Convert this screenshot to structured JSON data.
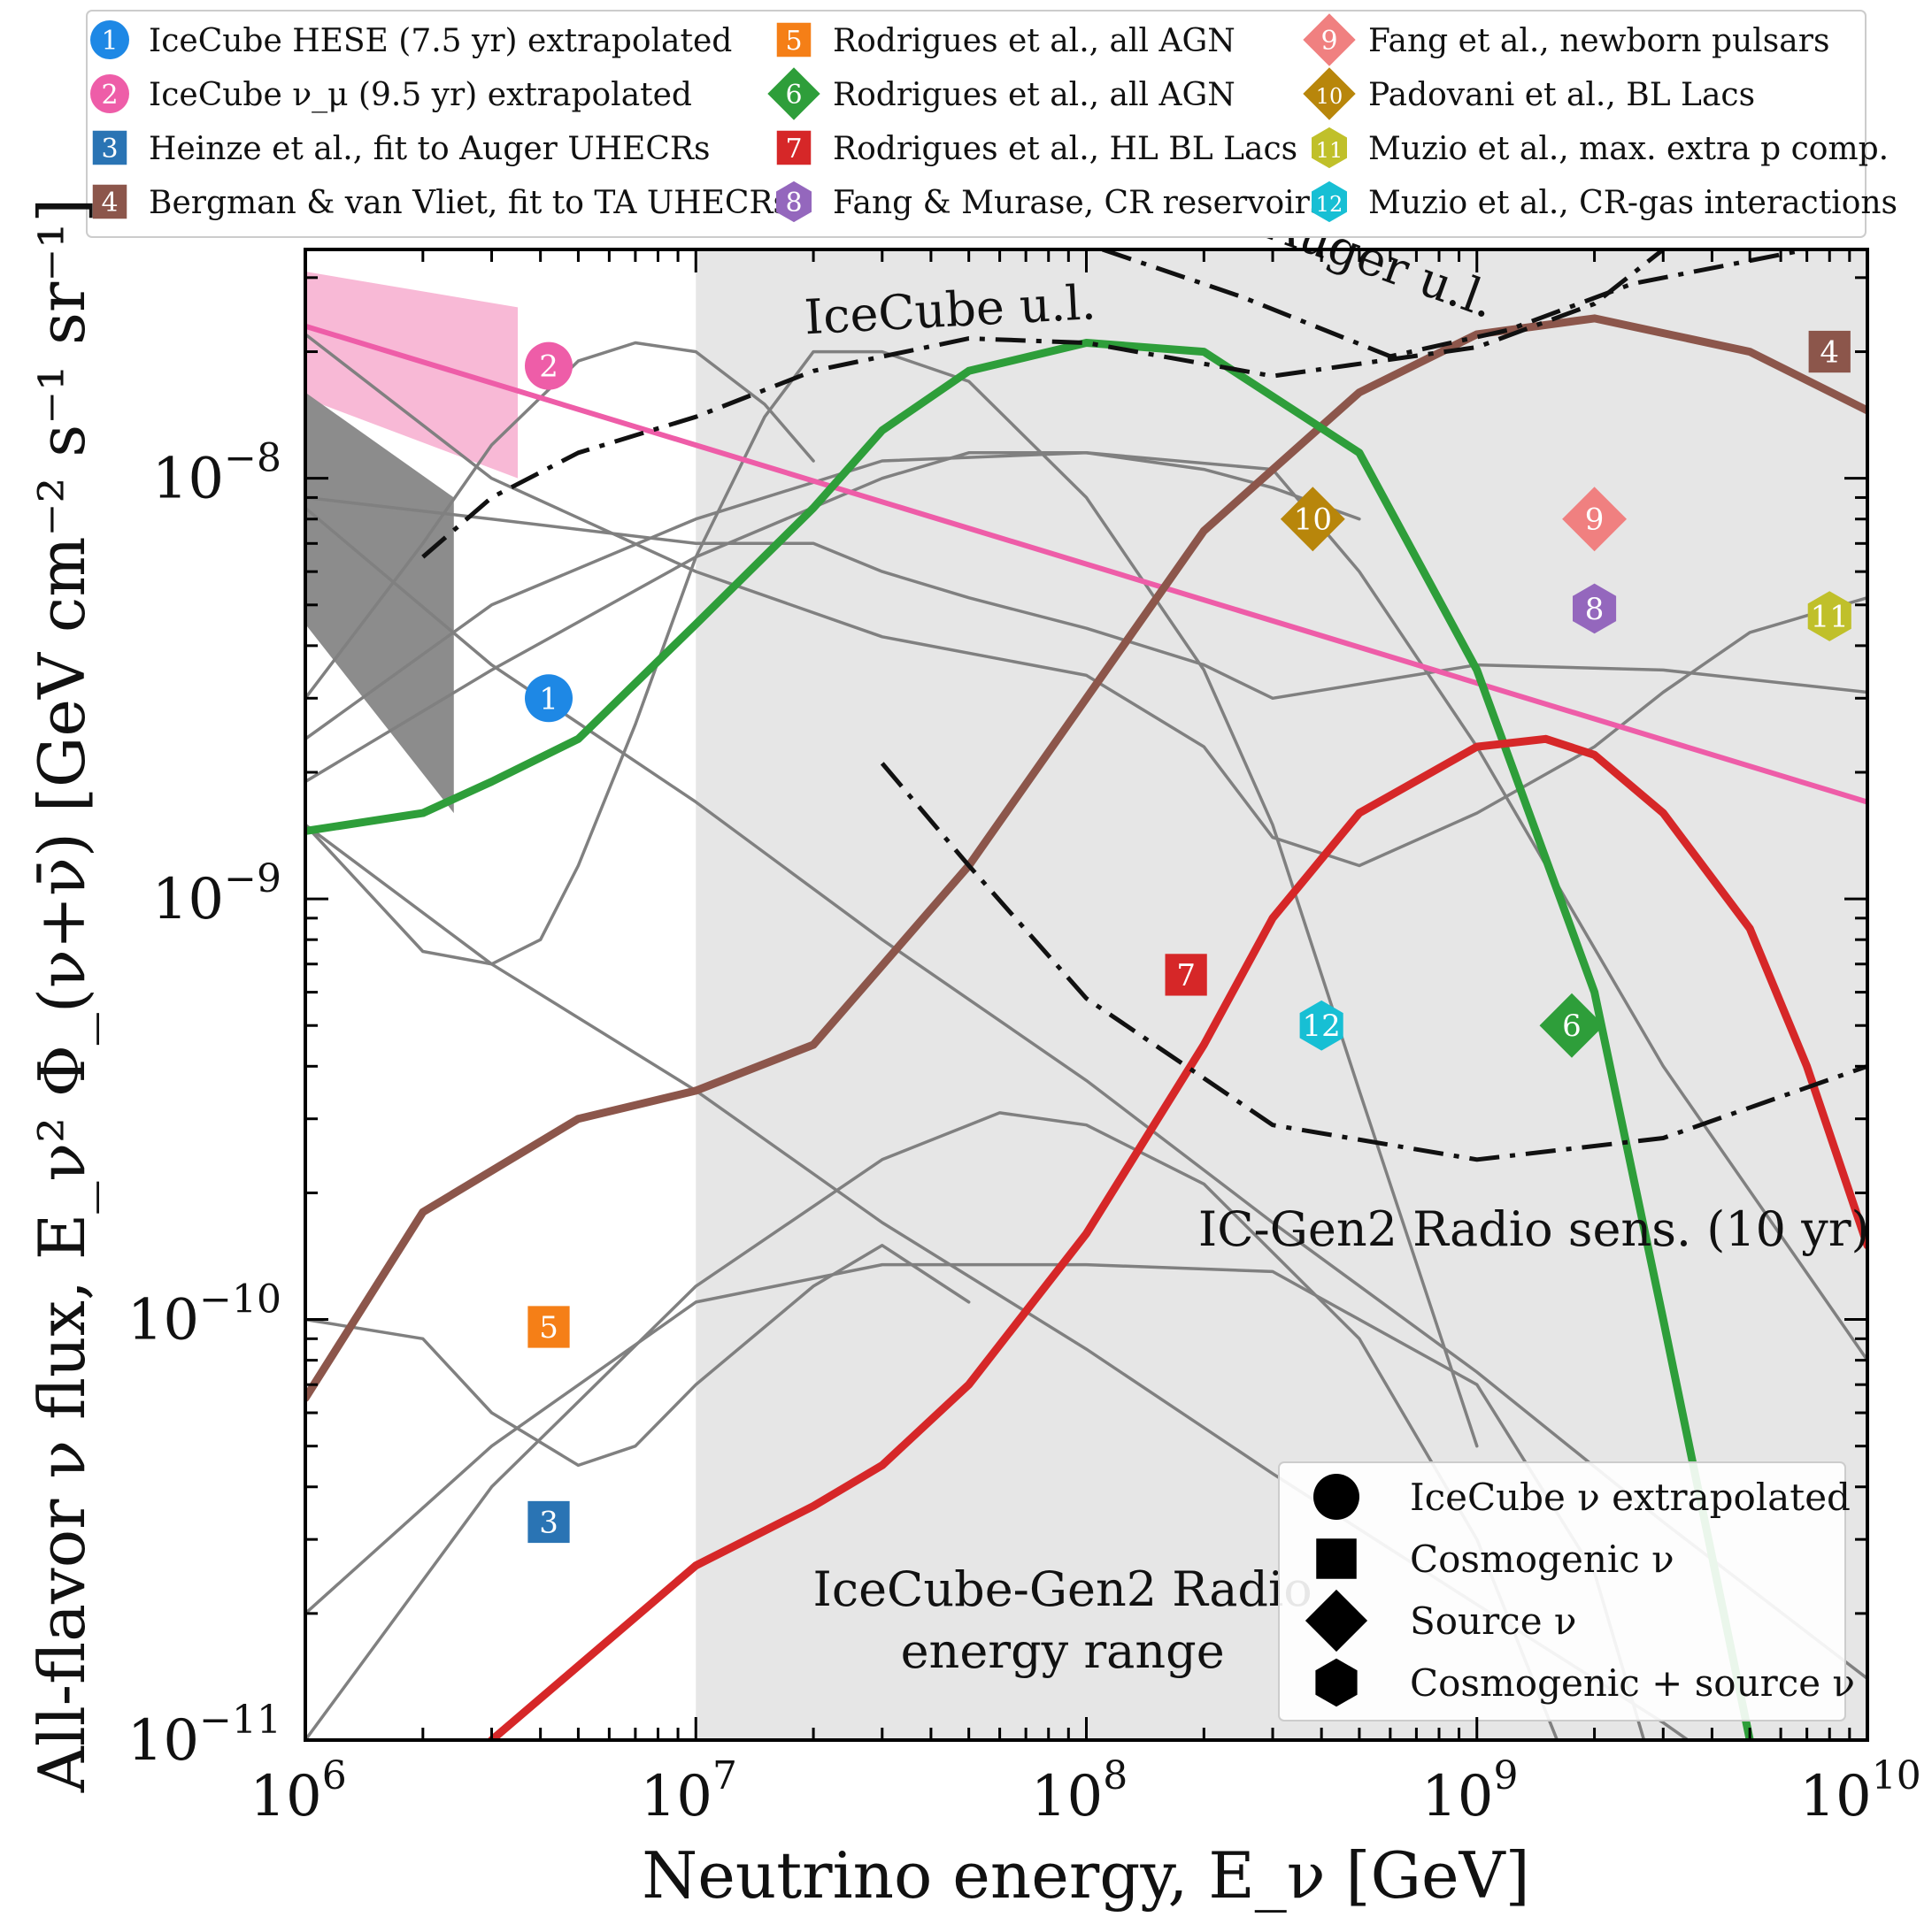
{
  "chart_data": {
    "type": "line",
    "xscale": "log",
    "yscale": "log",
    "xlim": [
      1000000.0,
      10000000000.0
    ],
    "ylim": [
      1e-11,
      3.5e-08
    ],
    "xlabel": "Neutrino energy, E_ν [GeV]",
    "ylabel": "All-flavor ν flux, E_ν² Φ_(ν+ν̄) [GeV cm⁻² s⁻¹ sr⁻¹]",
    "x_ticks": [
      {
        "value": 1000000.0,
        "base": "10",
        "exp": "6"
      },
      {
        "value": 10000000.0,
        "base": "10",
        "exp": "7"
      },
      {
        "value": 100000000.0,
        "base": "10",
        "exp": "8"
      },
      {
        "value": 1000000000.0,
        "base": "10",
        "exp": "9"
      },
      {
        "value": 10000000000.0,
        "base": "10",
        "exp": "10"
      }
    ],
    "y_ticks": [
      {
        "value": 1e-11,
        "base": "10",
        "exp": "−11"
      },
      {
        "value": 1e-10,
        "base": "10",
        "exp": "−10"
      },
      {
        "value": 1e-09,
        "base": "10",
        "exp": "−9"
      },
      {
        "value": 1e-08,
        "base": "10",
        "exp": "−8"
      }
    ],
    "shaded_region": {
      "x": [
        10000000.0,
        10000000000.0
      ],
      "label_line1": "IceCube-Gen2 Radio",
      "label_line2": "energy range",
      "color": "#e6e6e6"
    },
    "legend": [
      {
        "num": "1",
        "shape": "circle",
        "color": "#1e88e5",
        "label": "IceCube HESE (7.5 yr) extrapolated"
      },
      {
        "num": "2",
        "shape": "circle",
        "color": "#ee5da8",
        "label": "IceCube ν_μ (9.5 yr) extrapolated"
      },
      {
        "num": "3",
        "shape": "square",
        "color": "#2a74b4",
        "label": "Heinze et al., fit to Auger UHECRs"
      },
      {
        "num": "4",
        "shape": "square",
        "color": "#8c564b",
        "label": "Bergman & van Vliet, fit to TA UHECRs"
      },
      {
        "num": "5",
        "shape": "square",
        "color": "#f57f17",
        "label": "Rodrigues et al., all AGN"
      },
      {
        "num": "6",
        "shape": "diamond",
        "color": "#2e9e3a",
        "label": "Rodrigues et al., all AGN"
      },
      {
        "num": "7",
        "shape": "square",
        "color": "#d62728",
        "label": "Rodrigues et al., HL BL Lacs"
      },
      {
        "num": "8",
        "shape": "hexagon",
        "color": "#9467bd",
        "label": "Fang & Murase, CR reservoirs"
      },
      {
        "num": "9",
        "shape": "diamond",
        "color": "#f08080",
        "label": "Fang et al., newborn pulsars"
      },
      {
        "num": "10",
        "shape": "diamond",
        "color": "#b8860b",
        "label": "Padovani et al., BL Lacs"
      },
      {
        "num": "11",
        "shape": "hexagon",
        "color": "#c0c02a",
        "label": "Muzio et al., max. extra p comp."
      },
      {
        "num": "12",
        "shape": "hexagon",
        "color": "#17bfd4",
        "label": "Muzio et al., CR-gas interactions"
      }
    ],
    "kind_legend": [
      {
        "shape": "circle",
        "label": "IceCube ν extrapolated"
      },
      {
        "shape": "square",
        "label": "Cosmogenic ν"
      },
      {
        "shape": "diamond",
        "label": "Source ν"
      },
      {
        "shape": "hexagon",
        "label": "Cosmogenic + source ν"
      }
    ],
    "markers": [
      {
        "num": "1",
        "shape": "circle",
        "color": "#1e88e5",
        "x": 4200000.0,
        "y": 3e-09
      },
      {
        "num": "2",
        "shape": "circle",
        "color": "#ee5da8",
        "x": 4200000.0,
        "y": 1.85e-08
      },
      {
        "num": "3",
        "shape": "square",
        "color": "#2a74b4",
        "x": 4200000.0,
        "y": 3.3e-11
      },
      {
        "num": "4",
        "shape": "square",
        "color": "#8c564b",
        "x": 8000000000.0,
        "y": 2e-08
      },
      {
        "num": "5",
        "shape": "square",
        "color": "#f57f17",
        "x": 4200000.0,
        "y": 9.6e-11
      },
      {
        "num": "6",
        "shape": "diamond",
        "color": "#2e9e3a",
        "x": 1750000000.0,
        "y": 5e-10
      },
      {
        "num": "7",
        "shape": "square",
        "color": "#d62728",
        "x": 180000000.0,
        "y": 6.6e-10
      },
      {
        "num": "8",
        "shape": "hexagon",
        "color": "#9467bd",
        "x": 2000000000.0,
        "y": 4.9e-09
      },
      {
        "num": "9",
        "shape": "diamond",
        "color": "#f08080",
        "x": 2000000000.0,
        "y": 8e-09
      },
      {
        "num": "10",
        "shape": "diamond",
        "color": "#b8860b",
        "x": 380000000.0,
        "y": 8e-09
      },
      {
        "num": "11",
        "shape": "hexagon",
        "color": "#c0c02a",
        "x": 8000000000.0,
        "y": 4.7e-09
      },
      {
        "num": "12",
        "shape": "hexagon",
        "color": "#17bfd4",
        "x": 400000000.0,
        "y": 5e-10
      }
    ],
    "series": [
      {
        "name": "IceCube ν_μ (9.5 yr) extrapolated",
        "color": "#ee5da8",
        "width": 6,
        "style": "solid",
        "x": [
          1000000.0,
          10000000000.0
        ],
        "y": [
          2.3e-08,
          1.7e-09
        ]
      },
      {
        "name": "Bergman & van Vliet, fit to TA UHECRs",
        "color": "#8c564b",
        "width": 9,
        "style": "solid",
        "x": [
          1000000.0,
          2000000.0,
          5000000.0,
          10000000.0,
          20000000.0,
          50000000.0,
          100000000.0,
          200000000.0,
          500000000.0,
          1000000000.0,
          2000000000.0,
          5000000000.0,
          10000000000.0
        ],
        "y": [
          6.5e-11,
          1.8e-10,
          3e-10,
          3.5e-10,
          4.5e-10,
          1.2e-09,
          3e-09,
          7.5e-09,
          1.6e-08,
          2.2e-08,
          2.4e-08,
          2e-08,
          1.45e-08
        ]
      },
      {
        "name": "Rodrigues et al., all AGN",
        "color": "#2e9e3a",
        "width": 9,
        "style": "solid",
        "x": [
          1000000.0,
          2000000.0,
          3000000.0,
          5000000.0,
          10000000.0,
          20000000.0,
          30000000.0,
          50000000.0,
          100000000.0,
          200000000.0,
          500000000.0,
          1000000000.0,
          2000000000.0,
          3000000000.0,
          5000000000.0
        ],
        "y": [
          1.45e-09,
          1.6e-09,
          1.9e-09,
          2.4e-09,
          4.5e-09,
          8.5e-09,
          1.3e-08,
          1.8e-08,
          2.1e-08,
          2e-08,
          1.15e-08,
          3.5e-09,
          6e-10,
          1e-10,
          1e-11
        ]
      },
      {
        "name": "Rodrigues et al., HL BL Lacs",
        "color": "#d62728",
        "width": 9,
        "style": "solid",
        "x": [
          3000000.0,
          5000000.0,
          10000000.0,
          20000000.0,
          30000000.0,
          50000000.0,
          100000000.0,
          200000000.0,
          300000000.0,
          500000000.0,
          1000000000.0,
          1500000000.0,
          2000000000.0,
          3000000000.0,
          5000000000.0,
          7000000000.0,
          10000000000.0
        ],
        "y": [
          1e-11,
          1.5e-11,
          2.6e-11,
          3.6e-11,
          4.5e-11,
          7e-11,
          1.6e-10,
          4.5e-10,
          9e-10,
          1.6e-09,
          2.3e-09,
          2.4e-09,
          2.2e-09,
          1.6e-09,
          8.5e-10,
          4e-10,
          1.5e-10
        ]
      },
      {
        "name": "IceCube u.l.",
        "color": "#111111",
        "width": 5,
        "style": "dashdot",
        "x": [
          2000000.0,
          3000000.0,
          5000000.0,
          10000000.0,
          20000000.0,
          50000000.0,
          100000000.0,
          300000000.0,
          1000000000.0,
          2000000000.0,
          3000000000.0
        ],
        "y": [
          6.5e-09,
          9e-09,
          1.15e-08,
          1.4e-08,
          1.8e-08,
          2.15e-08,
          2.1e-08,
          1.75e-08,
          2.05e-08,
          2.6e-08,
          3.5e-08
        ]
      },
      {
        "name": "Auger u.l.",
        "color": "#111111",
        "width": 5,
        "style": "dashdot",
        "x": [
          110000000.0,
          250000000.0,
          600000000.0,
          1200000000.0,
          2500000000.0,
          7000000000.0
        ],
        "y": [
          3.5e-08,
          2.7e-08,
          1.95e-08,
          2.25e-08,
          2.9e-08,
          3.5e-08
        ]
      },
      {
        "name": "IC-Gen2 Radio sens. (10 yr)",
        "color": "#111111",
        "width": 5,
        "style": "dashdot",
        "x": [
          30000000.0,
          50000000.0,
          100000000.0,
          300000000.0,
          1000000000.0,
          3000000000.0,
          10000000000.0
        ],
        "y": [
          2.1e-09,
          1.2e-09,
          5.8e-10,
          2.9e-10,
          2.4e-10,
          2.7e-10,
          4e-10
        ]
      },
      {
        "name": "",
        "color": "#808080",
        "width": 3.5,
        "style": "solid",
        "x": [
          1000000.0,
          3000000.0,
          10000000.0,
          30000000.0,
          100000000.0,
          300000000.0,
          1000000000.0,
          3000000000.0,
          10000000000.0
        ],
        "y": [
          1.5e-09,
          7e-10,
          3.5e-10,
          1.7e-10,
          8.5e-11,
          4.3e-11,
          2.1e-11,
          1.1e-11,
          5e-12
        ]
      },
      {
        "name": "",
        "color": "#808080",
        "width": 3.5,
        "style": "solid",
        "x": [
          1000000.0,
          3000000.0,
          10000000.0,
          30000000.0,
          100000000.0,
          300000000.0,
          1000000000.0,
          3000000000.0,
          10000000000.0
        ],
        "y": [
          8.5e-09,
          3.6e-09,
          1.7e-09,
          8e-10,
          3.7e-10,
          1.7e-10,
          7.5e-11,
          3.3e-11,
          1.4e-11
        ]
      },
      {
        "name": "",
        "color": "#808080",
        "width": 3.5,
        "style": "solid",
        "x": [
          1000000.0,
          1500000.0,
          2000000.0,
          3000000.0,
          4000000.0,
          5000000.0,
          7000000.0,
          10000000.0,
          15000000.0,
          20000000.0,
          30000000.0,
          50000000.0,
          100000000.0,
          200000000.0,
          300000000.0,
          500000000.0,
          1000000000.0
        ],
        "y": [
          1.5e-09,
          1e-09,
          7.5e-10,
          7e-10,
          8e-10,
          1.2e-09,
          2.6e-09,
          6.5e-09,
          1.4e-08,
          2e-08,
          2e-08,
          1.7e-08,
          9e-09,
          3.5e-09,
          1.5e-09,
          3.5e-10,
          5e-11
        ]
      },
      {
        "name": "",
        "color": "#808080",
        "width": 3.5,
        "style": "solid",
        "x": [
          1000000.0,
          3000000.0,
          10000000.0,
          20000000.0,
          30000000.0,
          50000000.0,
          100000000.0,
          200000000.0,
          300000000.0,
          1000000000.0,
          3000000000.0,
          10000000000.0
        ],
        "y": [
          9e-09,
          8e-09,
          7e-09,
          7e-09,
          6e-09,
          5.2e-09,
          4.4e-09,
          3.6e-09,
          3e-09,
          3.6e-09,
          3.5e-09,
          3.1e-09
        ]
      },
      {
        "name": "",
        "color": "#808080",
        "width": 3.5,
        "style": "solid",
        "x": [
          1000000.0,
          3000000.0,
          10000000.0,
          30000000.0,
          50000000.0,
          100000000.0,
          200000000.0,
          300000000.0,
          500000000.0
        ],
        "y": [
          1.9e-09,
          3.5e-09,
          6.5e-09,
          1e-08,
          1.15e-08,
          1.15e-08,
          1.05e-08,
          9.5e-09,
          8e-09
        ]
      },
      {
        "name": "",
        "color": "#808080",
        "width": 3.5,
        "style": "solid",
        "x": [
          1000000.0,
          3000000.0,
          10000000.0,
          30000000.0,
          100000000.0,
          300000000.0,
          500000000.0,
          1000000000.0,
          3000000000.0,
          10000000000.0
        ],
        "y": [
          2.4e-09,
          5e-09,
          8e-09,
          1.1e-08,
          1.15e-08,
          1.05e-08,
          6e-09,
          2.3e-09,
          4e-10,
          8e-11
        ]
      },
      {
        "name": "",
        "color": "#808080",
        "width": 3.5,
        "style": "solid",
        "x": [
          1000000.0,
          3000000.0,
          10000000.0,
          30000000.0,
          100000000.0,
          200000000.0,
          300000000.0,
          500000000.0,
          1000000000.0,
          2000000000.0,
          3000000000.0,
          5000000000.0,
          10000000000.0
        ],
        "y": [
          2.2e-08,
          1e-08,
          6e-09,
          4.2e-09,
          3.4e-09,
          2.3e-09,
          1.4e-09,
          1.2e-09,
          1.6e-09,
          2.3e-09,
          3.1e-09,
          4.3e-09,
          5.2e-09
        ]
      },
      {
        "name": "",
        "color": "#808080",
        "width": 3.5,
        "style": "solid",
        "x": [
          1000000.0,
          2000000.0,
          3000000.0,
          5000000.0,
          7000000.0,
          10000000.0,
          15000000.0,
          20000000.0
        ],
        "y": [
          3e-09,
          7e-09,
          1.2e-08,
          1.9e-08,
          2.1e-08,
          2e-08,
          1.5e-08,
          1.1e-08
        ]
      },
      {
        "name": "",
        "color": "#808080",
        "width": 3.5,
        "style": "solid",
        "x": [
          1000000.0,
          2000000.0,
          3000000.0,
          5000000.0,
          7000000.0,
          10000000.0,
          20000000.0,
          30000000.0,
          50000000.0
        ],
        "y": [
          1e-10,
          9e-11,
          6e-11,
          4.5e-11,
          5e-11,
          7e-11,
          1.2e-10,
          1.5e-10,
          1.1e-10
        ]
      },
      {
        "name": "",
        "color": "#808080",
        "width": 3.5,
        "style": "solid",
        "x": [
          1000000.0,
          3000000.0,
          10000000.0,
          30000000.0,
          100000000.0,
          300000000.0,
          1000000000.0,
          2000000000.0,
          3000000000.0
        ],
        "y": [
          2e-11,
          5e-11,
          1.1e-10,
          1.35e-10,
          1.35e-10,
          1.3e-10,
          7e-11,
          2.5e-11,
          7e-12
        ]
      },
      {
        "name": "",
        "color": "#808080",
        "width": 3.5,
        "style": "solid",
        "x": [
          1000000.0,
          3000000.0,
          10000000.0,
          30000000.0,
          60000000.0,
          100000000.0,
          200000000.0,
          500000000.0,
          1000000000.0,
          2000000000.0
        ],
        "y": [
          1e-11,
          4e-11,
          1.2e-10,
          2.4e-10,
          3.1e-10,
          2.9e-10,
          2.1e-10,
          9e-11,
          3e-11,
          6e-12
        ]
      }
    ],
    "bands": [
      {
        "name": "IceCube ν_μ (9.5 yr) extrapolated",
        "color": "#f8b9d6",
        "x": [
          1000000.0,
          3500000.0
        ],
        "y_low": [
          1.55e-08,
          1e-08
        ],
        "y_high": [
          3.1e-08,
          2.55e-08
        ]
      },
      {
        "name": "IceCube HESE (7.5 yr) extrapolated",
        "color": "#8c8c8c",
        "x": [
          1000000.0,
          2400000.0
        ],
        "y_low": [
          4.5e-09,
          1.6e-09
        ],
        "y_high": [
          1.6e-08,
          9e-09
        ]
      }
    ],
    "annotations": [
      {
        "text": "IceCube u.l.",
        "x": 45000000.0,
        "y": 2.3e-08,
        "rotate": -3
      },
      {
        "text": "Auger u.l.",
        "x": 550000000.0,
        "y": 3e-08,
        "rotate": 20
      },
      {
        "text": "IC-Gen2 Radio sens. (10 yr)",
        "x": 1400000000.0,
        "y": 1.5e-10,
        "rotate": 0
      }
    ]
  }
}
